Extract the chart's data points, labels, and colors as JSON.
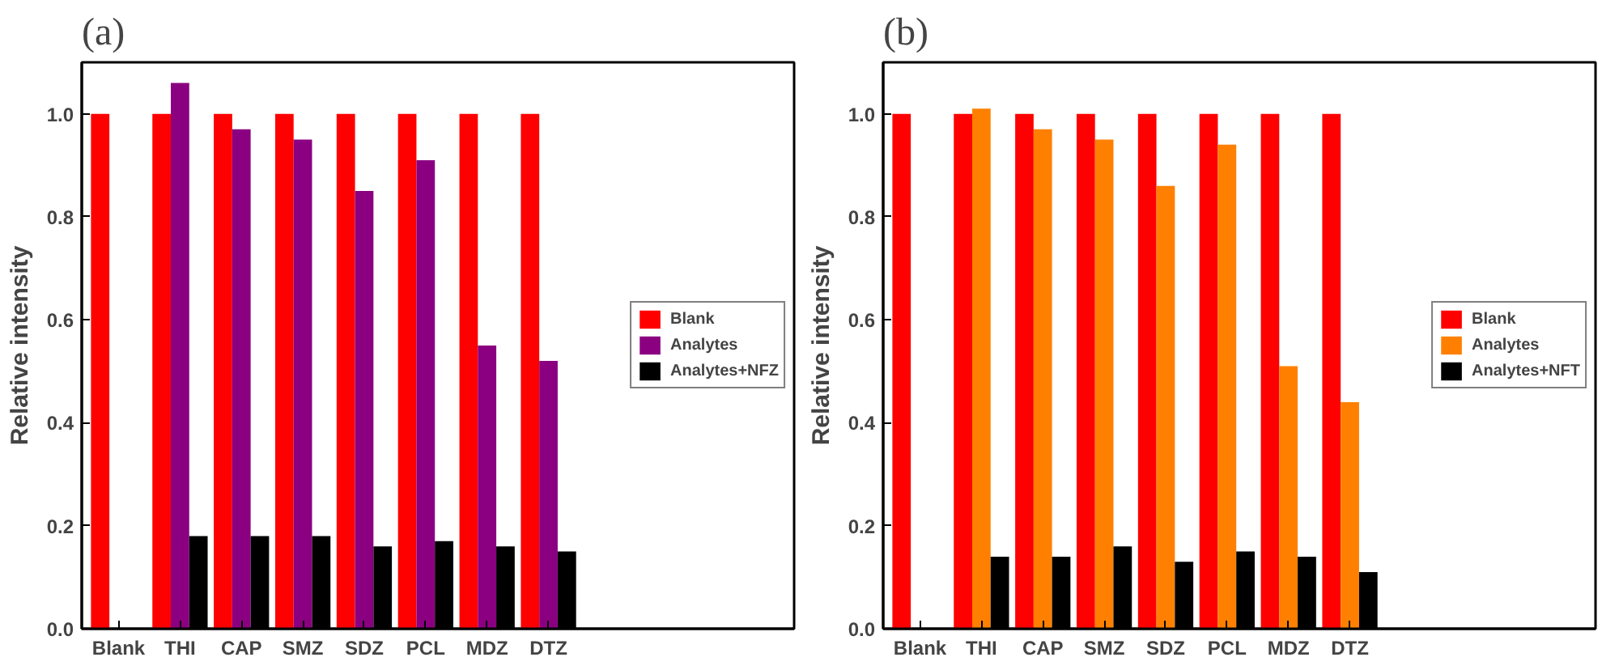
{
  "chart_data": [
    {
      "type": "bar",
      "title": "(a)",
      "ylabel": "Relative intensity",
      "categories": [
        "Blank",
        "THI",
        "CAP",
        "SMZ",
        "SDZ",
        "PCL",
        "MDZ",
        "DTZ"
      ],
      "ylim": [
        0,
        1.1
      ],
      "yticks": [
        {
          "value": 0,
          "label": "0.0"
        },
        {
          "value": 0.2,
          "label": "0.2"
        },
        {
          "value": 0.4,
          "label": "0.4"
        },
        {
          "value": 0.6,
          "label": "0.6"
        },
        {
          "value": 0.8,
          "label": "0.8"
        },
        {
          "value": 1,
          "label": "1.0"
        }
      ],
      "legend": "right",
      "grid": false,
      "series": [
        {
          "name": "Blank",
          "color": "#ff0000",
          "values": [
            1.0,
            1.0,
            1.0,
            1.0,
            1.0,
            1.0,
            1.0,
            1.0
          ]
        },
        {
          "name": "Analytes",
          "color": "#8b0080",
          "values": [
            null,
            1.06,
            0.97,
            0.95,
            0.85,
            0.91,
            0.55,
            0.52
          ]
        },
        {
          "name": "Analytes+NFZ",
          "color": "#000000",
          "values": [
            null,
            0.18,
            0.18,
            0.18,
            0.16,
            0.17,
            0.16,
            0.15
          ]
        }
      ]
    },
    {
      "type": "bar",
      "title": "(b)",
      "ylabel": "Relative intensity",
      "categories": [
        "Blank",
        "THI",
        "CAP",
        "SMZ",
        "SDZ",
        "PCL",
        "MDZ",
        "DTZ"
      ],
      "ylim": [
        0,
        1.1
      ],
      "yticks": [
        {
          "value": 0,
          "label": "0.0"
        },
        {
          "value": 0.2,
          "label": "0.2"
        },
        {
          "value": 0.4,
          "label": "0.4"
        },
        {
          "value": 0.6,
          "label": "0.6"
        },
        {
          "value": 0.8,
          "label": "0.8"
        },
        {
          "value": 1,
          "label": "1.0"
        }
      ],
      "legend": "right",
      "grid": false,
      "series": [
        {
          "name": "Blank",
          "color": "#ff0000",
          "values": [
            1.0,
            1.0,
            1.0,
            1.0,
            1.0,
            1.0,
            1.0,
            1.0
          ]
        },
        {
          "name": "Analytes",
          "color": "#ff8000",
          "values": [
            null,
            1.01,
            0.97,
            0.95,
            0.86,
            0.94,
            0.51,
            0.44
          ]
        },
        {
          "name": "Analytes+NFT",
          "color": "#000000",
          "values": [
            null,
            0.14,
            0.14,
            0.16,
            0.13,
            0.15,
            0.14,
            0.11
          ]
        }
      ]
    }
  ]
}
